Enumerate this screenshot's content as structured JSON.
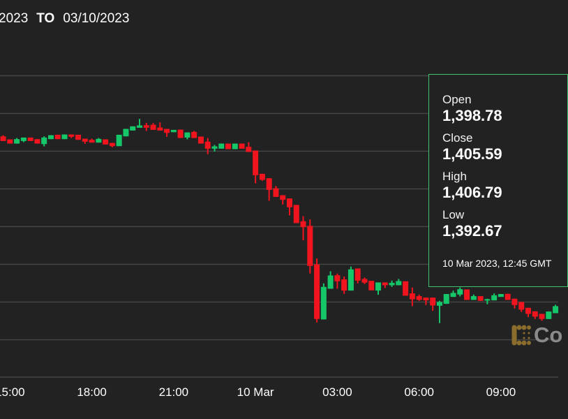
{
  "header": {
    "from_date": "2023",
    "to_label": "TO",
    "to_date": "03/10/2023"
  },
  "tooltip": {
    "open_label": "Open",
    "open": "1,398.78",
    "close_label": "Close",
    "close": "1,405.59",
    "high_label": "High",
    "high": "1,406.79",
    "low_label": "Low",
    "low": "1,392.67",
    "timestamp": "10 Mar 2023, 12:45 GMT"
  },
  "logo": {
    "text": "Co"
  },
  "colors": {
    "background": "#222222",
    "up": "#16c76a",
    "down": "#f0141e",
    "grid": "#454545",
    "tooltip_border": "#3ec46d",
    "logo_icon": "#8a6d2c"
  },
  "chart_data": {
    "type": "candlestick",
    "title": "",
    "xlabel": "",
    "ylabel": "",
    "interval": "15 min",
    "start": "2023-03-09 14:45",
    "xlim": [
      "2023-03-09 14:38",
      "2023-03-10 11:06"
    ],
    "ylim": [
      1300,
      1703
    ],
    "grid": true,
    "y_tick_values_hidden": [
      1350,
      1400,
      1450,
      1500,
      1550,
      1600,
      1650,
      1700
    ],
    "x_ticks": [
      {
        "label": "15:00",
        "time": "2023-03-09 15:00"
      },
      {
        "label": "18:00",
        "time": "2023-03-09 18:00"
      },
      {
        "label": "21:00",
        "time": "2023-03-09 21:00"
      },
      {
        "label": "10 Mar",
        "time": "2023-03-10 00:00"
      },
      {
        "label": "03:00",
        "time": "2023-03-10 03:00"
      },
      {
        "label": "06:00",
        "time": "2023-03-10 06:00"
      },
      {
        "label": "09:00",
        "time": "2023-03-10 09:00"
      }
    ],
    "ohlc_fields": [
      "open",
      "high",
      "low",
      "close"
    ],
    "candles": [
      [
        1619.4,
        1620.9,
        1613.2,
        1613.2
      ],
      [
        1615.4,
        1615.4,
        1609.8,
        1609.8
      ],
      [
        1609.8,
        1617.2,
        1609.8,
        1615.7
      ],
      [
        1613.2,
        1617.8,
        1611.7,
        1617.8
      ],
      [
        1617.8,
        1617.8,
        1613.2,
        1613.2
      ],
      [
        1615.7,
        1615.7,
        1609.8,
        1609.8
      ],
      [
        1609.2,
        1619.4,
        1606.1,
        1617.8
      ],
      [
        1615.7,
        1620.9,
        1615.7,
        1620.9
      ],
      [
        1621.5,
        1621.5,
        1615.7,
        1615.7
      ],
      [
        1615.7,
        1621.9,
        1615.7,
        1621.9
      ],
      [
        1621.9,
        1621.9,
        1617.2,
        1618.8
      ],
      [
        1621.5,
        1621.5,
        1614.8,
        1614.8
      ],
      [
        1616.3,
        1616.3,
        1609.5,
        1612.3
      ],
      [
        1614.8,
        1616.3,
        1611.1,
        1611.1
      ],
      [
        1611.1,
        1617.2,
        1611.1,
        1616.0
      ],
      [
        1615.4,
        1615.4,
        1608.6,
        1608.6
      ],
      [
        1610.7,
        1610.7,
        1604.9,
        1606.4
      ],
      [
        1606.4,
        1621.5,
        1606.4,
        1621.5
      ],
      [
        1619.4,
        1629.3,
        1619.4,
        1629.3
      ],
      [
        1627.1,
        1632.7,
        1627.1,
        1632.7
      ],
      [
        1630.8,
        1642.5,
        1630.8,
        1633.9
      ],
      [
        1634.2,
        1637.3,
        1626.5,
        1630.8
      ],
      [
        1634.8,
        1637.0,
        1628.0,
        1628.0
      ],
      [
        1631.1,
        1637.9,
        1627.1,
        1627.1
      ],
      [
        1629.3,
        1629.3,
        1618.8,
        1624.0
      ],
      [
        1624.9,
        1628.0,
        1624.9,
        1628.0
      ],
      [
        1628.3,
        1628.3,
        1617.2,
        1617.2
      ],
      [
        1617.8,
        1624.6,
        1615.4,
        1624.6
      ],
      [
        1625.3,
        1626.5,
        1617.2,
        1617.2
      ],
      [
        1619.1,
        1619.1,
        1609.8,
        1609.8
      ],
      [
        1612.3,
        1617.2,
        1595.6,
        1603.0
      ],
      [
        1603.0,
        1608.0,
        1599.3,
        1606.1
      ],
      [
        1603.0,
        1609.8,
        1603.0,
        1609.8
      ],
      [
        1609.8,
        1609.8,
        1602.4,
        1602.4
      ],
      [
        1602.4,
        1609.8,
        1602.4,
        1609.8
      ],
      [
        1609.8,
        1609.8,
        1603.0,
        1603.0
      ],
      [
        1605.5,
        1611.7,
        1598.7,
        1598.7
      ],
      [
        1600.6,
        1600.6,
        1557.0,
        1567.8
      ],
      [
        1569.7,
        1569.7,
        1560.4,
        1561.7
      ],
      [
        1563.8,
        1563.8,
        1533.9,
        1548.4
      ],
      [
        1550.5,
        1553.6,
        1539.1,
        1539.1
      ],
      [
        1541.3,
        1541.3,
        1529.0,
        1535.2
      ],
      [
        1537.0,
        1537.0,
        1514.5,
        1525.3
      ],
      [
        1528.4,
        1528.4,
        1504.3,
        1504.3
      ],
      [
        1506.8,
        1513.5,
        1481.4,
        1499.0
      ],
      [
        1500.6,
        1509.2,
        1437.3,
        1447.5
      ],
      [
        1449.6,
        1457.4,
        1372.5,
        1377.1
      ],
      [
        1376.5,
        1424.3,
        1376.5,
        1419.7
      ],
      [
        1417.2,
        1440.4,
        1417.2,
        1434.8
      ],
      [
        1435.1,
        1437.3,
        1417.2,
        1427.1
      ],
      [
        1429.6,
        1433.3,
        1410.4,
        1414.8
      ],
      [
        1414.8,
        1446.6,
        1414.8,
        1442.9
      ],
      [
        1444.1,
        1444.1,
        1424.3,
        1428.0
      ],
      [
        1430.2,
        1432.0,
        1423.4,
        1425.3
      ],
      [
        1427.7,
        1427.7,
        1415.1,
        1415.1
      ],
      [
        1414.8,
        1425.6,
        1409.2,
        1425.6
      ],
      [
        1425.6,
        1425.6,
        1418.2,
        1421.9
      ],
      [
        1421.9,
        1428.0,
        1419.7,
        1425.0
      ],
      [
        1421.9,
        1430.2,
        1421.9,
        1427.4
      ],
      [
        1427.1,
        1427.1,
        1408.0,
        1408.0
      ],
      [
        1411.1,
        1418.8,
        1394.1,
        1403.3
      ],
      [
        1407.4,
        1409.5,
        1401.2,
        1402.4
      ],
      [
        1405.5,
        1405.5,
        1395.6,
        1401.8
      ],
      [
        1405.5,
        1405.5,
        1387.9,
        1395.0
      ],
      [
        1394.7,
        1401.2,
        1371.6,
        1399.7
      ],
      [
        1397.2,
        1410.2,
        1397.2,
        1410.2
      ],
      [
        1406.4,
        1414.8,
        1406.4,
        1411.7
      ],
      [
        1409.5,
        1419.0,
        1407.1,
        1416.6
      ],
      [
        1416.3,
        1416.3,
        1402.4,
        1402.4
      ],
      [
        1402.4,
        1409.5,
        1402.4,
        1407.4
      ],
      [
        1407.4,
        1407.4,
        1401.2,
        1401.2
      ],
      [
        1401.8,
        1404.0,
        1396.6,
        1403.4
      ],
      [
        1401.8,
        1411.1,
        1401.8,
        1408.6
      ],
      [
        1406.4,
        1410.2,
        1406.4,
        1410.2
      ],
      [
        1410.5,
        1410.5,
        1402.4,
        1402.4
      ],
      [
        1404.0,
        1404.0,
        1391.0,
        1395.6
      ],
      [
        1399.7,
        1399.7,
        1386.4,
        1389.5
      ],
      [
        1391.9,
        1391.9,
        1379.6,
        1383.9
      ],
      [
        1387.3,
        1387.3,
        1377.1,
        1380.2
      ],
      [
        1383.9,
        1383.9,
        1374.7,
        1377.1
      ],
      [
        1377.1,
        1387.0,
        1377.1,
        1387.0
      ],
      [
        1384.8,
        1396.0,
        1384.8,
        1394.1
      ]
    ]
  }
}
